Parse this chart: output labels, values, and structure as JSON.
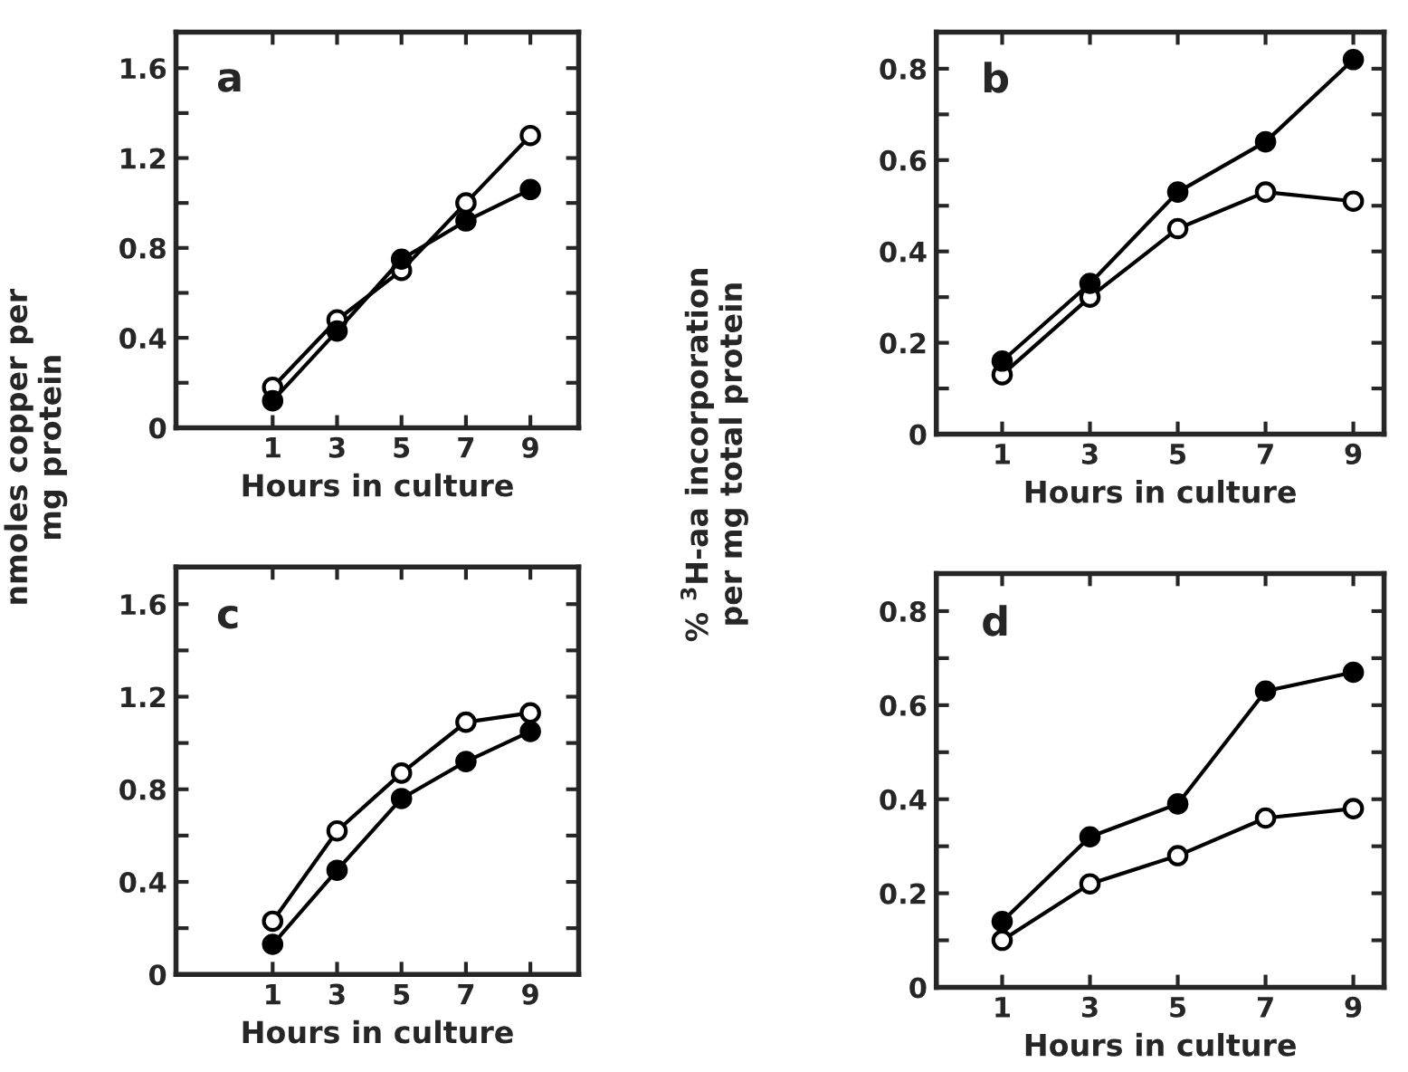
{
  "chart_data": [
    {
      "type": "line",
      "xlabel": "Hours in culture",
      "ylabel": "nmoles copper per\nmg protein",
      "annotations": [
        "a"
      ],
      "x": [
        1,
        3,
        5,
        7,
        9
      ],
      "xlim": [
        -2,
        10.5
      ],
      "xticks": [
        1,
        3,
        5,
        7,
        9
      ],
      "ylim": [
        0,
        1.76
      ],
      "yticks": [
        {
          "value": 0,
          "label": "0"
        },
        {
          "value": 0.2,
          "label": null
        },
        0.4,
        {
          "value": 0.6,
          "label": null
        },
        0.8,
        {
          "value": 1.0,
          "label": null
        },
        1.2,
        {
          "value": 1.4,
          "label": null
        },
        1.6
      ],
      "grid": false,
      "legend": false,
      "marker": "circle",
      "line_style": "solid",
      "series": [
        {
          "color": "#000000",
          "values": [
            0.18,
            0.48,
            0.7,
            1.0,
            1.3
          ]
        },
        {
          "color": "#000000",
          "values": [
            0.12,
            0.43,
            0.75,
            0.92,
            1.06
          ]
        }
      ]
    },
    {
      "type": "line",
      "xlabel": "Hours in culture",
      "ylabel": "% $^{3}$H-aa incorporation\nper mg total protein",
      "annotations": [
        "b"
      ],
      "x": [
        1,
        3,
        5,
        7,
        9
      ],
      "xlim": [
        -0.5,
        9.7
      ],
      "xticks": [
        1,
        3,
        5,
        7,
        9
      ],
      "ylim": [
        0,
        0.88
      ],
      "yticks": [
        {
          "value": 0,
          "label": "0"
        },
        {
          "value": 0.1,
          "label": null
        },
        0.2,
        {
          "value": 0.3,
          "label": null
        },
        0.4,
        {
          "value": 0.5,
          "label": null
        },
        0.6,
        {
          "value": 0.7,
          "label": null
        },
        0.8
      ],
      "grid": false,
      "legend": false,
      "marker": "circle",
      "line_style": "solid",
      "series": [
        {
          "color": "#000000",
          "values": [
            0.13,
            0.3,
            0.45,
            0.53,
            0.51
          ]
        },
        {
          "color": "#000000",
          "values": [
            0.16,
            0.33,
            0.53,
            0.64,
            0.82
          ]
        }
      ]
    },
    {
      "type": "line",
      "xlabel": "Hours in culture",
      "annotations": [
        "c"
      ],
      "x": [
        1,
        3,
        5,
        7,
        9
      ],
      "xlim": [
        -2,
        10.5
      ],
      "xticks": [
        1,
        3,
        5,
        7,
        9
      ],
      "ylim": [
        0,
        1.76
      ],
      "yticks": [
        {
          "value": 0,
          "label": "0"
        },
        {
          "value": 0.2,
          "label": null
        },
        0.4,
        {
          "value": 0.6,
          "label": null
        },
        0.8,
        {
          "value": 1.0,
          "label": null
        },
        1.2,
        {
          "value": 1.4,
          "label": null
        },
        1.6
      ],
      "grid": false,
      "legend": false,
      "marker": "circle",
      "line_style": "solid",
      "series": [
        {
          "color": "#000000",
          "values": [
            0.23,
            0.62,
            0.87,
            1.09,
            1.13
          ]
        },
        {
          "color": "#000000",
          "values": [
            0.13,
            0.45,
            0.76,
            0.92,
            1.05
          ]
        }
      ]
    },
    {
      "type": "line",
      "xlabel": "Hours in culture",
      "annotations": [
        "d"
      ],
      "x": [
        1,
        3,
        5,
        7,
        9
      ],
      "xlim": [
        -0.5,
        9.7
      ],
      "xticks": [
        1,
        3,
        5,
        7,
        9
      ],
      "ylim": [
        0,
        0.88
      ],
      "yticks": [
        {
          "value": 0,
          "label": "0"
        },
        {
          "value": 0.1,
          "label": null
        },
        0.2,
        {
          "value": 0.3,
          "label": null
        },
        0.4,
        {
          "value": 0.5,
          "label": null
        },
        0.6,
        {
          "value": 0.7,
          "label": null
        },
        0.8
      ],
      "grid": false,
      "legend": false,
      "marker": "circle",
      "line_style": "solid",
      "series": [
        {
          "color": "#000000",
          "values": [
            0.1,
            0.22,
            0.28,
            0.36,
            0.38
          ]
        },
        {
          "color": "#000000",
          "values": [
            0.14,
            0.32,
            0.39,
            0.63,
            0.67
          ]
        }
      ]
    }
  ]
}
